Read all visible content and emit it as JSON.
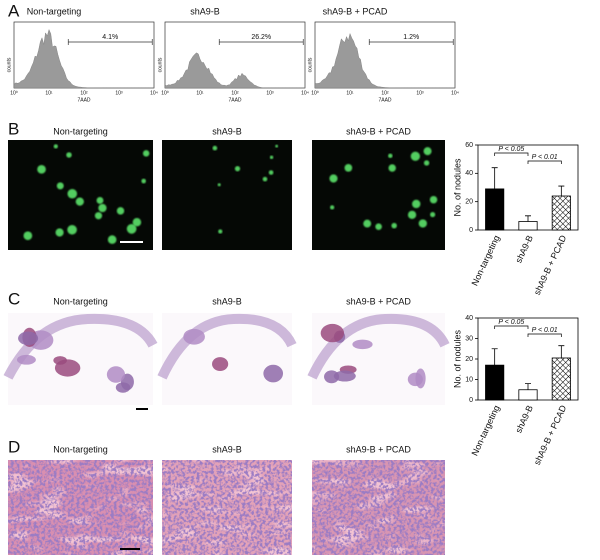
{
  "panels": {
    "A": {
      "letter": "A",
      "ylabel": "counts",
      "xlabel": "7AAD",
      "xtick_labels": [
        "10⁰",
        "10¹",
        "10²",
        "10³",
        "10⁴"
      ],
      "histograms": [
        {
          "title": "Non-targeting",
          "gate": "4.1%"
        },
        {
          "title": "shA9-B",
          "gate": "26.2%"
        },
        {
          "title": "shA9-B + PCAD",
          "gate": "1.2%"
        }
      ]
    },
    "B": {
      "letter": "B",
      "titles": [
        "Non-targeting",
        "shA9-B",
        "shA9-B + PCAD"
      ]
    },
    "C": {
      "letter": "C",
      "titles": [
        "Non-targeting",
        "shA9-B",
        "shA9-B + PCAD"
      ]
    },
    "D": {
      "letter": "D",
      "titles": [
        "Non-targeting",
        "shA9-B",
        "shA9-B + PCAD"
      ]
    }
  },
  "chart_data": [
    {
      "type": "bar",
      "ylabel": "No. of nodules",
      "categories": [
        "Non-targeting",
        "shA9-B",
        "shA9-B + PCAD"
      ],
      "values": [
        29,
        6,
        24
      ],
      "errors": [
        15,
        4,
        7
      ],
      "fill_styles": [
        "solid",
        "open",
        "crosshatch"
      ],
      "color": "#000000",
      "annotations": [
        "P < 0.05",
        "P < 0.01"
      ],
      "ylim": [
        0,
        60
      ],
      "yticks": [
        0,
        20,
        40,
        60
      ]
    },
    {
      "type": "bar",
      "ylabel": "No. of nodules",
      "categories": [
        "Non-targeting",
        "shA9-B",
        "shA9-B + PCAD"
      ],
      "values": [
        17,
        5,
        20.5
      ],
      "errors": [
        8,
        3,
        6
      ],
      "fill_styles": [
        "solid",
        "open",
        "crosshatch"
      ],
      "color": "#000000",
      "annotations": [
        "P < 0.05",
        "P < 0.01"
      ],
      "ylim": [
        0,
        40
      ],
      "yticks": [
        0,
        10,
        20,
        30,
        40
      ]
    }
  ]
}
